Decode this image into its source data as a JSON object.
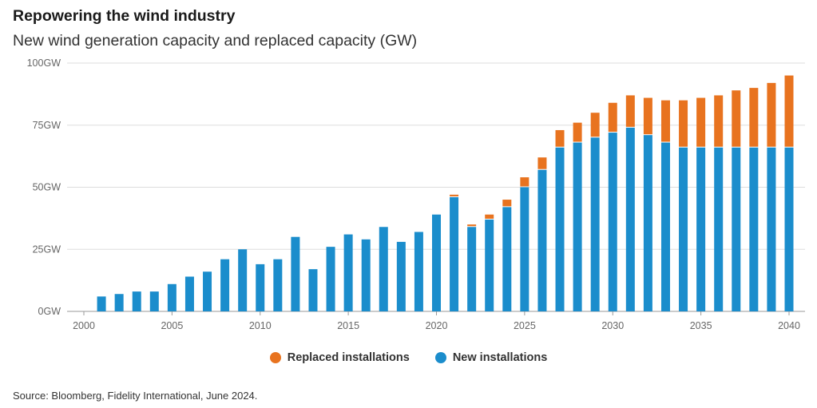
{
  "title": "Repowering the wind industry",
  "subtitle": "New wind generation capacity and replaced capacity (GW)",
  "source": "Source: Bloomberg, Fidelity International, June 2024.",
  "colors": {
    "replaced": "#e8731f",
    "new": "#1b8dcc",
    "grid": "#dddddd",
    "axis": "#999999"
  },
  "chart_data": {
    "type": "bar",
    "stacked": true,
    "ylim": [
      0,
      100
    ],
    "xlim": [
      2000,
      2040
    ],
    "yticks": [
      0,
      25,
      50,
      75,
      100
    ],
    "ytick_labels": [
      "0GW",
      "25GW",
      "50GW",
      "75GW",
      "100GW"
    ],
    "xticks": [
      2000,
      2005,
      2010,
      2015,
      2020,
      2025,
      2030,
      2035,
      2040
    ],
    "xtick_labels": [
      "2000",
      "2005",
      "2010",
      "2015",
      "2020",
      "2025",
      "2030",
      "2035",
      "2040"
    ],
    "legend_position": "bottom-center",
    "x": [
      2001,
      2002,
      2003,
      2004,
      2005,
      2006,
      2007,
      2008,
      2009,
      2010,
      2011,
      2012,
      2013,
      2014,
      2015,
      2016,
      2017,
      2018,
      2019,
      2020,
      2021,
      2022,
      2023,
      2024,
      2025,
      2026,
      2027,
      2028,
      2029,
      2030,
      2031,
      2032,
      2033,
      2034,
      2035,
      2036,
      2037,
      2038,
      2039,
      2040
    ],
    "series": [
      {
        "name": "New installations",
        "color": "#1b8dcc",
        "values": [
          6,
          7,
          8,
          8,
          11,
          14,
          16,
          21,
          25,
          19,
          21,
          30,
          17,
          26,
          31,
          29,
          34,
          28,
          32,
          39,
          46,
          34,
          37,
          42,
          50,
          57,
          66,
          68,
          70,
          72,
          74,
          71,
          68,
          66,
          66,
          66,
          66,
          66,
          66,
          66
        ]
      },
      {
        "name": "Replaced installations",
        "color": "#e8731f",
        "values": [
          0,
          0,
          0,
          0,
          0,
          0,
          0,
          0,
          0,
          0,
          0,
          0,
          0,
          0,
          0,
          0,
          0,
          0,
          0,
          0,
          1,
          1,
          2,
          3,
          4,
          5,
          7,
          8,
          10,
          12,
          13,
          15,
          17,
          19,
          20,
          21,
          23,
          24,
          26,
          29
        ]
      }
    ]
  },
  "legend": {
    "items": [
      {
        "label": "Replaced installations",
        "color": "#e8731f"
      },
      {
        "label": "New installations",
        "color": "#1b8dcc"
      }
    ]
  }
}
